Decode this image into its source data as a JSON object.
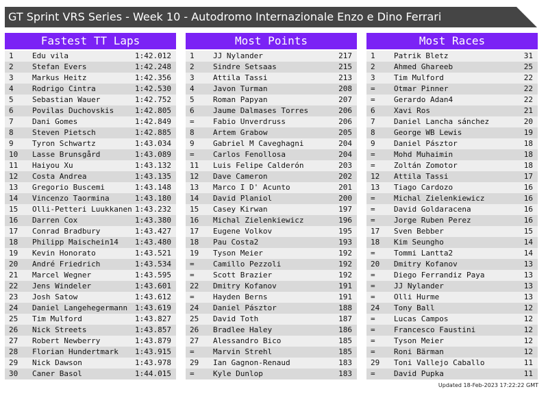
{
  "header": {
    "title": "GT Sprint VRS Series - Week 10 - Autodromo Internazionale Enzo e Dino Ferrari"
  },
  "boards": [
    {
      "title": "Fastest TT Laps",
      "rows": [
        [
          1,
          "Edu vila",
          "1:42.012"
        ],
        [
          2,
          "Stefan Evers",
          "1:42.248"
        ],
        [
          3,
          "Markus Heitz",
          "1:42.356"
        ],
        [
          4,
          "Rodrigo Cintra",
          "1:42.530"
        ],
        [
          5,
          "Sebastian Wauer",
          "1:42.752"
        ],
        [
          6,
          "Povilas Duchovskis",
          "1:42.805"
        ],
        [
          7,
          "Dani Gomes",
          "1:42.849"
        ],
        [
          8,
          "Steven Pietsch",
          "1:42.885"
        ],
        [
          9,
          "Tyron Schwartz",
          "1:43.034"
        ],
        [
          10,
          "Lasse Brunsgård",
          "1:43.089"
        ],
        [
          11,
          "Haiyou Xu",
          "1:43.132"
        ],
        [
          12,
          "Costa Andrea",
          "1:43.135"
        ],
        [
          13,
          "Gregorio Buscemi",
          "1:43.148"
        ],
        [
          14,
          "Vincenzo Taormina",
          "1:43.180"
        ],
        [
          15,
          "Olli-Petteri Luukkanen",
          "1:43.232"
        ],
        [
          16,
          "Darren Cox",
          "1:43.380"
        ],
        [
          17,
          "Conrad Bradbury",
          "1:43.427"
        ],
        [
          18,
          "Philipp Maischein14",
          "1:43.480"
        ],
        [
          19,
          "Kevin Honorato",
          "1:43.521"
        ],
        [
          20,
          "André Friedrich",
          "1:43.534"
        ],
        [
          21,
          "Marcel Wegner",
          "1:43.595"
        ],
        [
          22,
          "Jens Windeler",
          "1:43.601"
        ],
        [
          23,
          "Josh Satow",
          "1:43.612"
        ],
        [
          24,
          "Daniel Langehegermann",
          "1:43.619"
        ],
        [
          25,
          "Tim Mulford",
          "1:43.827"
        ],
        [
          26,
          "Nick Streets",
          "1:43.857"
        ],
        [
          27,
          "Robert Newberry",
          "1:43.879"
        ],
        [
          28,
          "Florian Hundertmark",
          "1:43.915"
        ],
        [
          29,
          "Nick Dawson",
          "1:43.978"
        ],
        [
          30,
          "Caner Basol",
          "1:44.015"
        ]
      ]
    },
    {
      "title": "Most Points",
      "rows": [
        [
          1,
          "JJ Nylander",
          217
        ],
        [
          2,
          "Sindre Setsaas",
          215
        ],
        [
          3,
          "Attila Tassi",
          213
        ],
        [
          4,
          "Javon Turman",
          208
        ],
        [
          5,
          "Roman Papyan",
          207
        ],
        [
          6,
          "Jaume Dalmases Torres",
          206
        ],
        [
          "=",
          "Fabio Unverdruss",
          206
        ],
        [
          8,
          "Artem Grabow",
          205
        ],
        [
          9,
          "Gabriel M Caveghagni",
          204
        ],
        [
          "=",
          "Carlos Fenollosa",
          204
        ],
        [
          11,
          "Luis Felipe Calderón",
          203
        ],
        [
          12,
          "Dave Cameron",
          202
        ],
        [
          13,
          "Marco I D' Acunto",
          201
        ],
        [
          14,
          "David Planiol",
          200
        ],
        [
          15,
          "Casey Kirwan",
          197
        ],
        [
          16,
          "Michal Zielenkiewicz",
          196
        ],
        [
          17,
          "Eugene Volkov",
          195
        ],
        [
          18,
          "Pau Costa2",
          193
        ],
        [
          19,
          "Tyson Meier",
          192
        ],
        [
          "=",
          "Camillo Pezzoli",
          192
        ],
        [
          "=",
          "Scott Brazier",
          192
        ],
        [
          22,
          "Dmitry Kofanov",
          191
        ],
        [
          "=",
          "Hayden Berns",
          191
        ],
        [
          24,
          "Daniel Pásztor",
          188
        ],
        [
          25,
          "David Toth",
          187
        ],
        [
          26,
          "Bradlee Haley",
          186
        ],
        [
          27,
          "Alessandro Bico",
          185
        ],
        [
          "=",
          "Marvin Strehl",
          185
        ],
        [
          29,
          "Ian Gagnon-Renaud",
          183
        ],
        [
          "=",
          "Kyle Dunlop",
          183
        ]
      ]
    },
    {
      "title": "Most Races",
      "rows": [
        [
          1,
          "Patrik Bletz",
          31
        ],
        [
          2,
          "Ahmed Ghareeb",
          25
        ],
        [
          3,
          "Tim Mulford",
          22
        ],
        [
          "=",
          "Otmar Pinner",
          22
        ],
        [
          "=",
          "Gerardo Adan4",
          22
        ],
        [
          6,
          "Xavi Ros",
          21
        ],
        [
          7,
          "Daniel Lancha sánchez",
          20
        ],
        [
          8,
          "George WB Lewis",
          19
        ],
        [
          9,
          "Daniel Pásztor",
          18
        ],
        [
          "=",
          "Mohd Muhaimin",
          18
        ],
        [
          "=",
          "Zoltán Zomotor",
          18
        ],
        [
          12,
          "Attila Tassi",
          17
        ],
        [
          13,
          "Tiago Cardozo",
          16
        ],
        [
          "=",
          "Michal Zielenkiewicz",
          16
        ],
        [
          "=",
          "David Goldaracena",
          16
        ],
        [
          "=",
          "Jorge Ruben Perez",
          16
        ],
        [
          17,
          "Sven Bebber",
          15
        ],
        [
          18,
          "Kim Seungho",
          14
        ],
        [
          "=",
          "Tommi Lantta2",
          14
        ],
        [
          20,
          "Dmitry Kofanov",
          13
        ],
        [
          "=",
          "Diego Ferrandiz Paya",
          13
        ],
        [
          "=",
          "JJ Nylander",
          13
        ],
        [
          "=",
          "Olli Hurme",
          13
        ],
        [
          24,
          "Tony Ball",
          12
        ],
        [
          "=",
          "Lucas Campos",
          12
        ],
        [
          "=",
          "Francesco Faustini",
          12
        ],
        [
          "=",
          "Tyson Meier",
          12
        ],
        [
          "=",
          "Roni Bärman",
          12
        ],
        [
          29,
          "Toni Vallejo Caballo",
          11
        ],
        [
          "=",
          "David Pupka",
          11
        ]
      ]
    }
  ],
  "footer": {
    "updated": "Updated 18-Feb-2023 17:22:22 GMT"
  }
}
